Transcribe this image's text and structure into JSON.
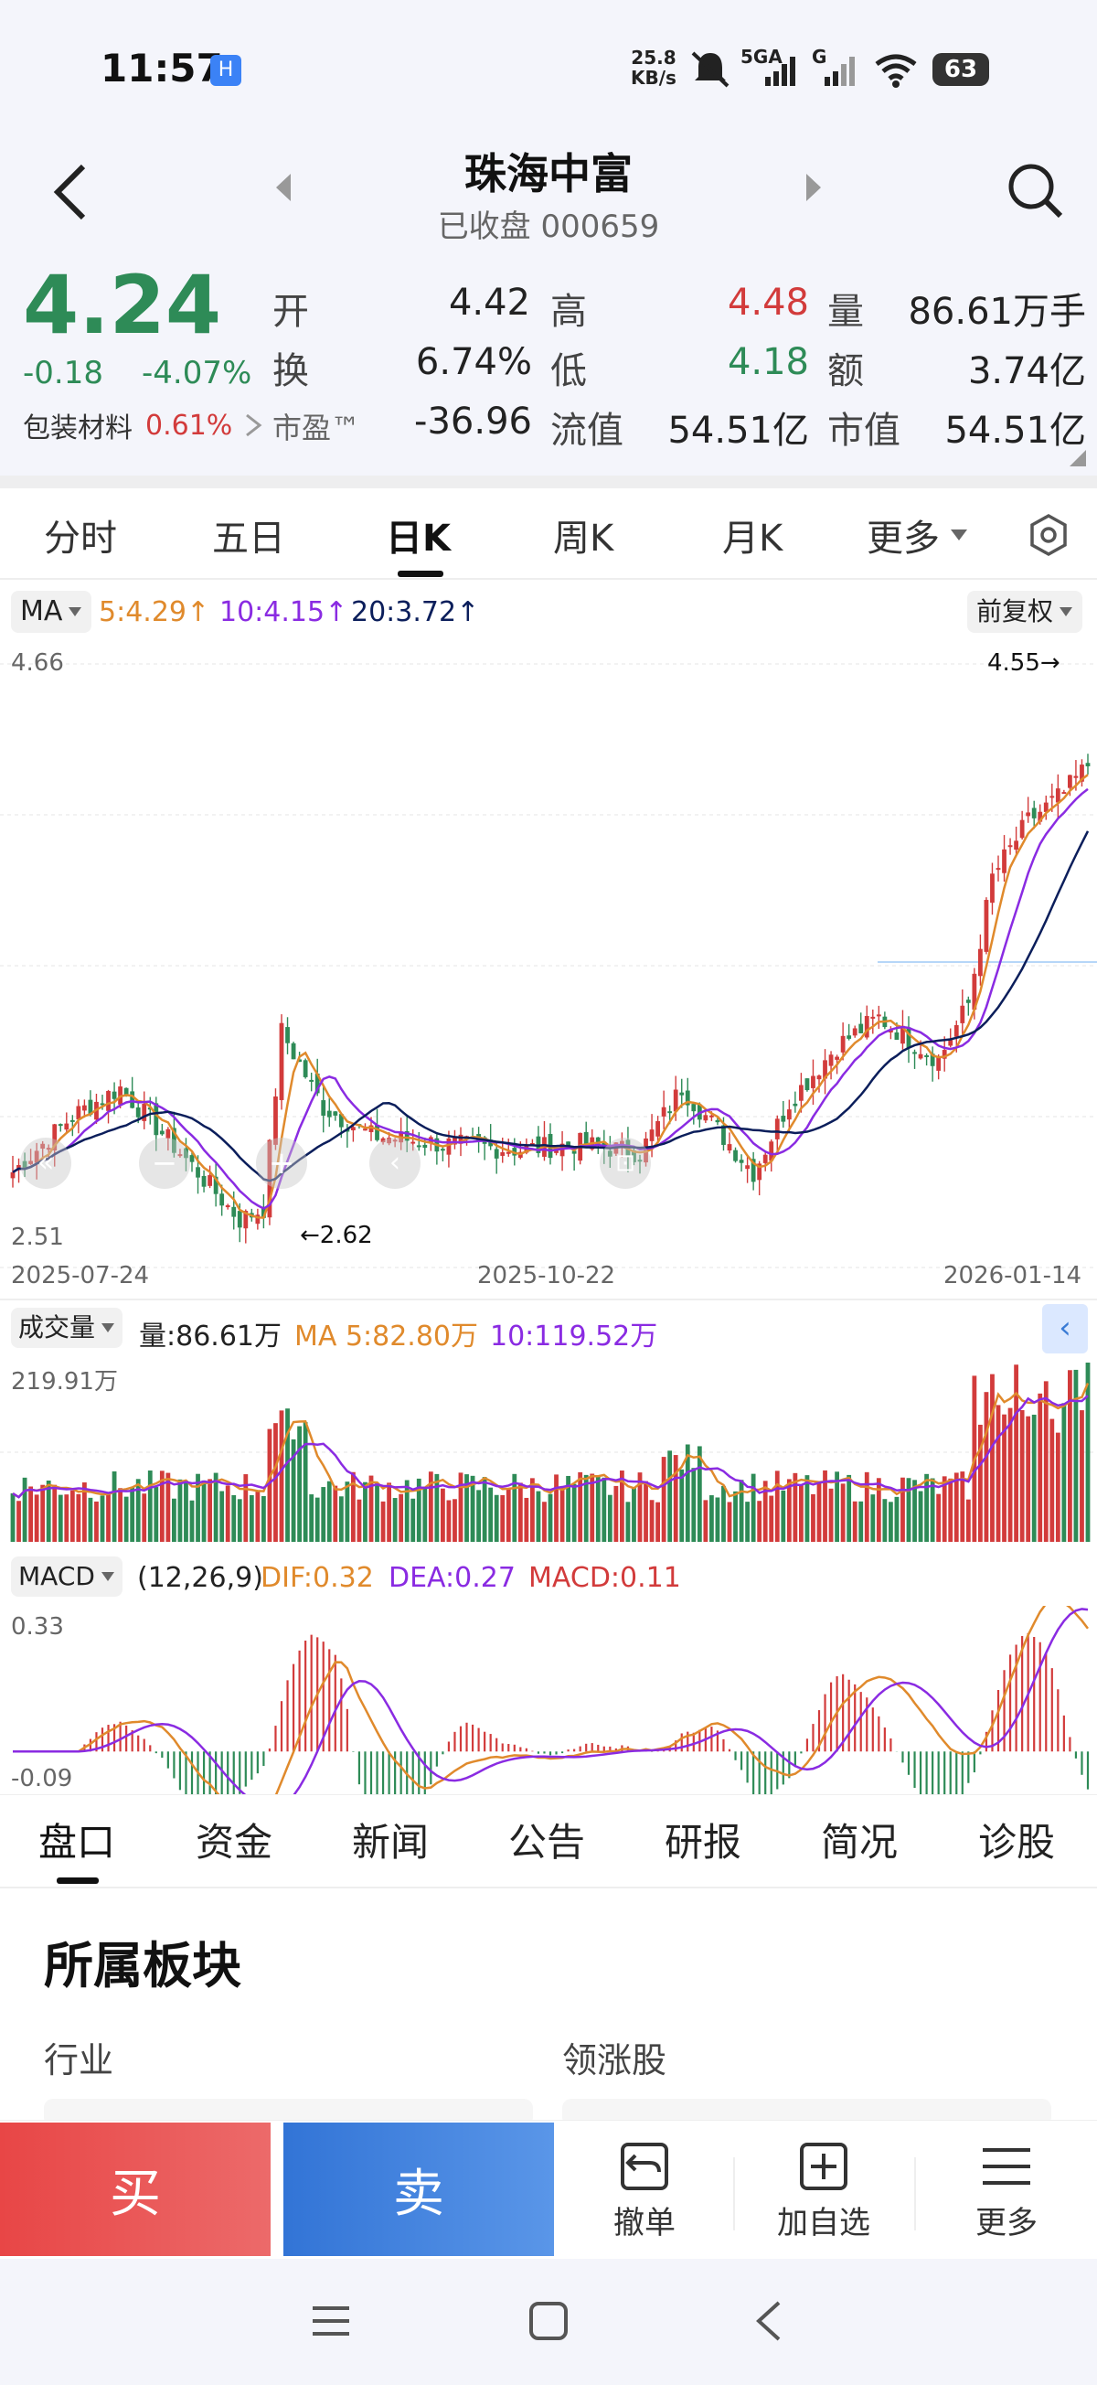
{
  "status": {
    "time": "11:57",
    "speed_value": "25.8",
    "speed_unit": "KB/s",
    "network": "5GA",
    "network2": "G",
    "battery": "63"
  },
  "header": {
    "title": "珠海中富",
    "subtitle": "已收盘 000659"
  },
  "quote": {
    "price": "4.24",
    "change": "-0.18",
    "change_pct": "-4.07%",
    "sector_name": "包装材料",
    "sector_pct": "0.61%",
    "open_label": "开",
    "open": "4.42",
    "high_label": "高",
    "high": "4.48",
    "vol_label": "量",
    "vol": "86.61万手",
    "turn_label": "换",
    "turn": "6.74%",
    "low_label": "低",
    "low": "4.18",
    "amt_label": "额",
    "amt": "3.74亿",
    "pe_label": "市盈™",
    "pe": "-36.96",
    "float_label": "流值",
    "float": "54.51亿",
    "mcap_label": "市值",
    "mcap": "54.51亿"
  },
  "tabs": [
    "分时",
    "五日",
    "日K",
    "周K",
    "月K",
    "更多"
  ],
  "active_tab": "日K",
  "ma_bar": {
    "label": "MA",
    "ma5": "5:4.29",
    "ma10": "10:4.15",
    "ma20": "20:3.72",
    "adjust": "前复权"
  },
  "price_chart": {
    "ymax": "4.66",
    "ymin": "2.51",
    "high_mark": "4.55→",
    "low_mark": "←2.62",
    "dates": [
      "2025-07-24",
      "2025-10-22",
      "2026-01-14"
    ]
  },
  "volume": {
    "label": "成交量",
    "vol": "量:86.61万",
    "ma5": "MA 5:82.80万",
    "ma10": "10:119.52万",
    "ymax": "219.91万"
  },
  "macd": {
    "label": "MACD",
    "params": "(12,26,9)",
    "dif": "DIF:0.32",
    "dea": "DEA:0.27",
    "macd": "MACD:0.11",
    "ymax": "0.33",
    "ymin": "-0.09"
  },
  "bottom_tabs": [
    "盘口",
    "资金",
    "新闻",
    "公告",
    "研报",
    "简况",
    "诊股"
  ],
  "section": {
    "title": "所属板块",
    "industry": "行业",
    "leading": "领涨股"
  },
  "actions": {
    "buy": "买",
    "sell": "卖",
    "cancel": "撤单",
    "watch": "加自选",
    "more": "更多"
  },
  "colors": {
    "up": "#d23b3b",
    "down": "#2e8b57",
    "ma5": "#e08a2c",
    "ma10": "#8a2be2",
    "ma20": "#0b1e5b",
    "buy": "#e84b4b",
    "sell": "#3a7bd5"
  }
}
